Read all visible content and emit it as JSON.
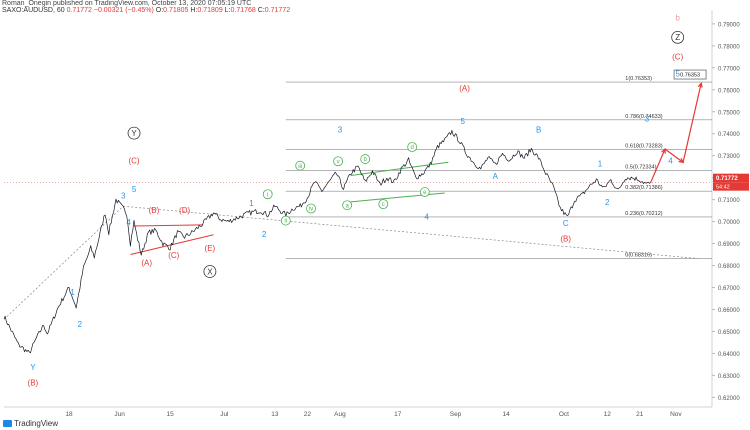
{
  "header": {
    "publisher_line": "Roman_Onegin published on TradingView.com, October 13, 2020 07:05:19 UTC",
    "symbol": "SAXO:AUDUSD, 60",
    "last_value": "0.71772",
    "change": "−0.00321 (−0.45%)",
    "o_label": "O:",
    "o": "0.71805",
    "h_label": "H:",
    "h": "0.71809",
    "l_label": "L:",
    "l": "0.71768",
    "c_label": "C:",
    "c": "0.71772"
  },
  "footer": {
    "brand": "TradingView"
  },
  "colors": {
    "price": "#131722",
    "blue_labels": "#2196f3",
    "red_labels": "#e53935",
    "green_labels": "#4caf50",
    "axis_text": "#555555",
    "fib_line": "#888888"
  },
  "chart_data": {
    "type": "line",
    "title": "",
    "xlabel": "",
    "ylabel": "",
    "ylim": [
      0.6156,
      0.7945
    ],
    "grid": false,
    "y_ticks": [
      "0.79000",
      "0.78000",
      "0.77000",
      "0.76000",
      "0.75000",
      "0.74000",
      "0.73000",
      "0.72000",
      "0.71000",
      "0.70000",
      "0.69000",
      "0.68000",
      "0.67000",
      "0.66000",
      "0.65000",
      "0.64000",
      "0.63000",
      "0.62000"
    ],
    "y_tick_values": [
      0.79,
      0.78,
      0.77,
      0.76,
      0.75,
      0.74,
      0.73,
      0.72,
      0.71,
      0.7,
      0.69,
      0.68,
      0.67,
      0.66,
      0.65,
      0.64,
      0.63,
      0.62
    ],
    "x_ticks": [
      "18",
      "Jun",
      "15",
      "Jul",
      "13",
      "22",
      "Aug",
      "17",
      "Sep",
      "14",
      "Oct",
      "12",
      "21",
      "Nov"
    ],
    "x_tick_days": [
      18,
      32,
      46,
      61,
      75,
      84,
      93,
      109,
      125,
      139,
      155,
      167,
      176,
      186
    ],
    "current_price": {
      "label": "0.71772",
      "value": 0.71772
    },
    "countdown": "54:42",
    "price_path": [
      [
        0,
        0.657
      ],
      [
        4,
        0.644
      ],
      [
        7,
        0.64
      ],
      [
        9,
        0.647
      ],
      [
        11,
        0.653
      ],
      [
        12,
        0.649
      ],
      [
        15,
        0.661
      ],
      [
        18,
        0.67
      ],
      [
        20,
        0.661
      ],
      [
        22,
        0.679
      ],
      [
        24,
        0.688
      ],
      [
        25,
        0.684
      ],
      [
        28,
        0.704
      ],
      [
        29,
        0.695
      ],
      [
        31,
        0.71
      ],
      [
        33,
        0.706
      ],
      [
        34,
        0.7035
      ],
      [
        35,
        0.69
      ],
      [
        36,
        0.7
      ],
      [
        37,
        0.692
      ],
      [
        38,
        0.685
      ],
      [
        40,
        0.695
      ],
      [
        42,
        0.696
      ],
      [
        44,
        0.69
      ],
      [
        46,
        0.688
      ],
      [
        48,
        0.695
      ],
      [
        50,
        0.693
      ],
      [
        52,
        0.695
      ],
      [
        55,
        0.699
      ],
      [
        58,
        0.704
      ],
      [
        60,
        0.701
      ],
      [
        62,
        0.7
      ],
      [
        65,
        0.702
      ],
      [
        68,
        0.704
      ],
      [
        71,
        0.705
      ],
      [
        73,
        0.703
      ],
      [
        75,
        0.707
      ],
      [
        78,
        0.703
      ],
      [
        80,
        0.706
      ],
      [
        82,
        0.707
      ],
      [
        84,
        0.711
      ],
      [
        86,
        0.718
      ],
      [
        88,
        0.714
      ],
      [
        90,
        0.718
      ],
      [
        92,
        0.722
      ],
      [
        94,
        0.715
      ],
      [
        96,
        0.722
      ],
      [
        98,
        0.725
      ],
      [
        100,
        0.718
      ],
      [
        102,
        0.723
      ],
      [
        104,
        0.717
      ],
      [
        106,
        0.72
      ],
      [
        108,
        0.718
      ],
      [
        110,
        0.724
      ],
      [
        112,
        0.728
      ],
      [
        114,
        0.72
      ],
      [
        116,
        0.722
      ],
      [
        118,
        0.726
      ],
      [
        120,
        0.734
      ],
      [
        122,
        0.737
      ],
      [
        124,
        0.741
      ],
      [
        126,
        0.737
      ],
      [
        128,
        0.731
      ],
      [
        130,
        0.727
      ],
      [
        132,
        0.724
      ],
      [
        134,
        0.729
      ],
      [
        136,
        0.726
      ],
      [
        138,
        0.731
      ],
      [
        140,
        0.728
      ],
      [
        142,
        0.732
      ],
      [
        144,
        0.729
      ],
      [
        146,
        0.733
      ],
      [
        148,
        0.729
      ],
      [
        150,
        0.722
      ],
      [
        152,
        0.716
      ],
      [
        154,
        0.706
      ],
      [
        156,
        0.702
      ],
      [
        158,
        0.71
      ],
      [
        160,
        0.712
      ],
      [
        162,
        0.716
      ],
      [
        164,
        0.719
      ],
      [
        166,
        0.715
      ],
      [
        168,
        0.719
      ],
      [
        170,
        0.714
      ],
      [
        172,
        0.72
      ],
      [
        174,
        0.72
      ],
      [
        176,
        0.719
      ],
      [
        178,
        0.717
      ],
      [
        179,
        0.7177
      ]
    ],
    "fib_levels": [
      {
        "label": "1(0.76353)",
        "value": 0.76353
      },
      {
        "label": "0.786(0.74633)",
        "value": 0.74633
      },
      {
        "label": "0.618(0.73283)",
        "value": 0.73283
      },
      {
        "label": "0.5(0.72334)",
        "value": 0.72334
      },
      {
        "label": "0.382(0.71386)",
        "value": 0.71386
      },
      {
        "label": "0.236(0.70212)",
        "value": 0.70212
      },
      {
        "label": "0(0.68316)",
        "value": 0.68316
      }
    ],
    "target_box": {
      "label": "0.76353",
      "value": 0.76353
    },
    "trendlines": [
      {
        "color": "#888888",
        "dashed": true,
        "points": [
          [
            0,
            0.6555
          ],
          [
            33,
            0.707
          ]
        ]
      },
      {
        "color": "#888888",
        "dashed": true,
        "points": [
          [
            33,
            0.707
          ],
          [
            192,
            0.6832
          ]
        ]
      },
      {
        "color": "#e53935",
        "dashed": false,
        "points": [
          [
            36,
            0.698
          ],
          [
            55,
            0.6985
          ]
        ]
      },
      {
        "color": "#e53935",
        "dashed": false,
        "points": [
          [
            35,
            0.685
          ],
          [
            58,
            0.694
          ]
        ]
      },
      {
        "color": "#4caf50",
        "dashed": false,
        "points": [
          [
            96,
            0.721
          ],
          [
            123,
            0.727
          ]
        ]
      },
      {
        "color": "#4caf50",
        "dashed": false,
        "points": [
          [
            96,
            0.709
          ],
          [
            122,
            0.713
          ]
        ]
      }
    ],
    "projection": [
      [
        179,
        0.7177
      ],
      [
        183,
        0.733
      ],
      [
        188,
        0.727
      ],
      [
        193,
        0.763
      ]
    ],
    "annotations": [
      {
        "text": "Y",
        "x": 8,
        "y": 0.6325,
        "color": "#2196f3",
        "circle": false
      },
      {
        "text": "(B)",
        "x": 8,
        "y": 0.6255,
        "color": "#e53935",
        "circle": false
      },
      {
        "text": "1",
        "x": 19,
        "y": 0.6665,
        "color": "#2196f3",
        "circle": false
      },
      {
        "text": "2",
        "x": 21,
        "y": 0.652,
        "color": "#2196f3",
        "circle": false
      },
      {
        "text": "3",
        "x": 33,
        "y": 0.7105,
        "color": "#2196f3",
        "circle": false
      },
      {
        "text": "4",
        "x": 34.5,
        "y": 0.6985,
        "color": "#2196f3",
        "circle": false
      },
      {
        "text": "5",
        "x": 36,
        "y": 0.7135,
        "color": "#2196f3",
        "circle": false
      },
      {
        "text": "(C)",
        "x": 36,
        "y": 0.7265,
        "color": "#e53935",
        "circle": false
      },
      {
        "text": "Y",
        "x": 36,
        "y": 0.739,
        "color": "#333333",
        "circle": true
      },
      {
        "text": "(B)",
        "x": 41.5,
        "y": 0.704,
        "color": "#e53935",
        "circle": false
      },
      {
        "text": "(A)",
        "x": 39.5,
        "y": 0.68,
        "color": "#e53935",
        "circle": false
      },
      {
        "text": "(C)",
        "x": 47,
        "y": 0.6835,
        "color": "#e53935",
        "circle": false
      },
      {
        "text": "(D)",
        "x": 50,
        "y": 0.704,
        "color": "#e53935",
        "circle": false
      },
      {
        "text": "(E)",
        "x": 57,
        "y": 0.6865,
        "color": "#e53935",
        "circle": false
      },
      {
        "text": "X",
        "x": 57,
        "y": 0.676,
        "color": "#333333",
        "circle": true
      },
      {
        "text": "i",
        "x": 73,
        "y": 0.7115,
        "color": "#4caf50",
        "circle": true
      },
      {
        "text": "ii",
        "x": 78,
        "y": 0.6995,
        "color": "#4caf50",
        "circle": true
      },
      {
        "text": "iii",
        "x": 82,
        "y": 0.7245,
        "color": "#4caf50",
        "circle": true
      },
      {
        "text": "iv",
        "x": 85,
        "y": 0.705,
        "color": "#4caf50",
        "circle": true
      },
      {
        "text": "1",
        "x": 68.5,
        "y": 0.707,
        "color": "#2196f3",
        "circle": false
      },
      {
        "text": "2",
        "x": 72,
        "y": 0.693,
        "color": "#2196f3",
        "circle": false
      },
      {
        "text": "3",
        "x": 93,
        "y": 0.7405,
        "color": "#2196f3",
        "circle": false
      },
      {
        "text": "4",
        "x": 117,
        "y": 0.701,
        "color": "#2196f3",
        "circle": false
      },
      {
        "text": "a",
        "x": 95,
        "y": 0.7065,
        "color": "#4caf50",
        "circle": true
      },
      {
        "text": "b",
        "x": 100,
        "y": 0.7275,
        "color": "#4caf50",
        "circle": true
      },
      {
        "text": "c",
        "x": 105,
        "y": 0.707,
        "color": "#4caf50",
        "circle": true
      },
      {
        "text": "d",
        "x": 113,
        "y": 0.733,
        "color": "#4caf50",
        "circle": true
      },
      {
        "text": "e",
        "x": 116.5,
        "y": 0.7125,
        "color": "#4caf50",
        "circle": true
      },
      {
        "text": "v",
        "x": 92.5,
        "y": 0.7265,
        "color": "#4caf50",
        "circle": true
      },
      {
        "text": "5",
        "x": 127,
        "y": 0.7445,
        "color": "#2196f3",
        "circle": false
      },
      {
        "text": "(A)",
        "x": 127.5,
        "y": 0.7595,
        "color": "#e53935",
        "circle": false
      },
      {
        "text": "A",
        "x": 136,
        "y": 0.7195,
        "color": "#2196f3",
        "circle": false
      },
      {
        "text": "B",
        "x": 148,
        "y": 0.7405,
        "color": "#2196f3",
        "circle": false
      },
      {
        "text": "C",
        "x": 155.5,
        "y": 0.698,
        "color": "#2196f3",
        "circle": false
      },
      {
        "text": "(B)",
        "x": 155.5,
        "y": 0.691,
        "color": "#e53935",
        "circle": false
      },
      {
        "text": "1",
        "x": 165,
        "y": 0.725,
        "color": "#2196f3",
        "circle": false
      },
      {
        "text": "2",
        "x": 167,
        "y": 0.7075,
        "color": "#2196f3",
        "circle": false
      },
      {
        "text": "3",
        "x": 178,
        "y": 0.7455,
        "color": "#2196f3",
        "circle": false
      },
      {
        "text": "4",
        "x": 184.5,
        "y": 0.7265,
        "color": "#2196f3",
        "circle": false
      },
      {
        "text": "5",
        "x": 186.5,
        "y": 0.766,
        "color": "#2196f3",
        "circle": false
      },
      {
        "text": "(C)",
        "x": 186.5,
        "y": 0.7738,
        "color": "#e53935",
        "circle": false
      },
      {
        "text": "Z",
        "x": 186.5,
        "y": 0.7826,
        "color": "#333333",
        "circle": true
      },
      {
        "text": "b",
        "x": 186.5,
        "y": 0.7915,
        "color": "#ef9a9a",
        "circle": false
      }
    ]
  }
}
